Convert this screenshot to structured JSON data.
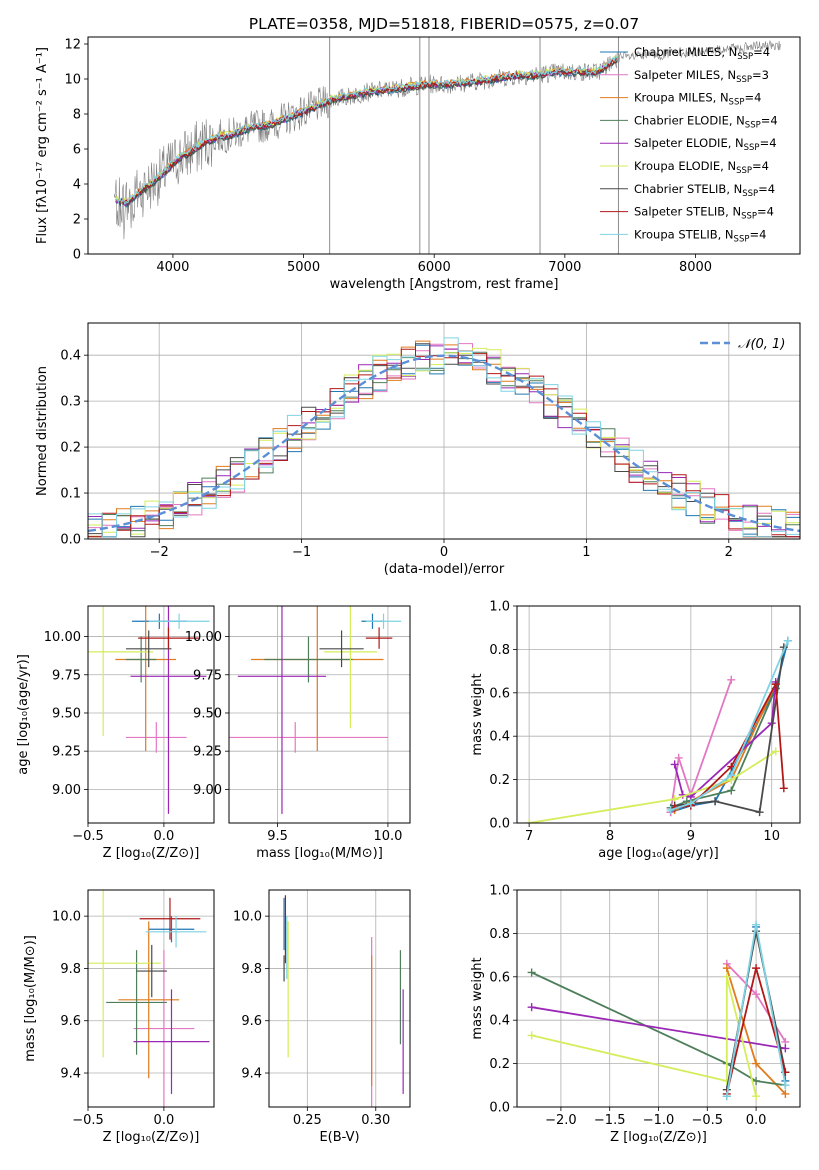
{
  "title": "PLATE=0358, MJD=51818, FIBERID=0575, z=0.07",
  "models": [
    {
      "name": "Chabrier MILES",
      "nssp": "4",
      "color": "#1f77b4"
    },
    {
      "name": "Salpeter MILES",
      "nssp": "3",
      "color": "#e377c2"
    },
    {
      "name": "Kroupa MILES",
      "nssp": "4",
      "color": "#e07b1e"
    },
    {
      "name": "Chabrier ELODIE",
      "nssp": "4",
      "color": "#4f7f5a"
    },
    {
      "name": "Salpeter ELODIE",
      "nssp": "4",
      "color": "#9b27b6"
    },
    {
      "name": "Kroupa ELODIE",
      "nssp": "4",
      "color": "#d4ed5a"
    },
    {
      "name": "Chabrier STELIB",
      "nssp": "4",
      "color": "#4a4a4a"
    },
    {
      "name": "Salpeter STELIB",
      "nssp": "4",
      "color": "#b21818"
    },
    {
      "name": "Kroupa STELIB",
      "nssp": "4",
      "color": "#7fd3e3"
    }
  ],
  "colors": {
    "data": "#808080",
    "normal": "#5b8fd6",
    "grid": "#b0b0b0"
  },
  "legend_nssp_prefix": "N",
  "legend_nssp_sub": "SSP",
  "chart_data": [
    {
      "id": "spectrum",
      "type": "line",
      "xlabel": "wavelength [Angstrom, rest frame]",
      "ylabel": "Flux [fλ10⁻¹⁷ erg cm⁻² s⁻¹ A⁻¹]",
      "xlim": [
        3350,
        8800
      ],
      "ylim": [
        0,
        12.4
      ],
      "xticks": [
        4000,
        5000,
        6000,
        7000,
        8000
      ],
      "yticks": [
        0,
        2,
        4,
        6,
        8,
        10,
        12
      ],
      "grid": false,
      "legend": "right",
      "continuum": {
        "x": [
          3550,
          3650,
          3750,
          3850,
          3950,
          4050,
          4150,
          4250,
          4350,
          4450,
          4550,
          4650,
          4750,
          4850,
          4950,
          5050,
          5150,
          5250,
          5350,
          5450,
          5550,
          5650,
          5750,
          5850,
          5950,
          6050,
          6150,
          6250,
          6350,
          6450,
          6550,
          6650,
          6750,
          6850,
          6950,
          7050,
          7150,
          7250,
          7350,
          7400
        ],
        "y": [
          3.1,
          2.9,
          3.6,
          4.1,
          4.8,
          5.5,
          5.9,
          6.4,
          6.7,
          6.8,
          7.1,
          7.3,
          7.4,
          7.7,
          8.0,
          8.3,
          8.6,
          8.9,
          9.0,
          9.2,
          9.3,
          9.4,
          9.5,
          9.6,
          9.7,
          9.7,
          9.7,
          9.8,
          9.9,
          10.0,
          10.1,
          10.2,
          10.2,
          10.3,
          10.4,
          10.4,
          10.4,
          10.4,
          10.9,
          11.2
        ]
      },
      "data_extent": [
        3550,
        8650
      ],
      "spikes": [
        5200,
        5890,
        5960,
        6810,
        7410
      ]
    },
    {
      "id": "residuals",
      "type": "histogram",
      "xlabel": "(data-model)/error",
      "ylabel": "Normed distribution",
      "xlim": [
        -2.5,
        2.5
      ],
      "ylim": [
        0,
        0.47
      ],
      "xticks": [
        -2,
        -1,
        0,
        1,
        2
      ],
      "yticks": [
        0.0,
        0.1,
        0.2,
        0.3,
        0.4
      ],
      "grid": true,
      "legend": "top-right",
      "normal_label": "𝒩(0, 1)",
      "bin_width": 0.1
    },
    {
      "id": "age_vs_Z",
      "type": "errorbar",
      "xlabel": "Z [log₁₀(Z/Z⊙)]",
      "ylabel": "age  [log₁₀(age/yr)]",
      "xlim": [
        -0.5,
        0.33
      ],
      "ylim": [
        8.78,
        10.2
      ],
      "xticks": [
        -0.5,
        0.0
      ],
      "yticks": [
        9.0,
        9.25,
        9.5,
        9.75,
        10.0
      ],
      "grid": true,
      "points": [
        {
          "x": -0.03,
          "xerr": 0.18,
          "y": 10.1,
          "yerr": 0.05
        },
        {
          "x": -0.05,
          "xerr": 0.2,
          "y": 9.34,
          "yerr": 0.1
        },
        {
          "x": -0.12,
          "xerr": 0.2,
          "y": 9.85,
          "yerr": 0.6
        },
        {
          "x": -0.15,
          "xerr": 0.1,
          "y": 9.85,
          "yerr": 0.15
        },
        {
          "x": 0.03,
          "xerr": 0.25,
          "y": 9.74,
          "yerr": 0.9
        },
        {
          "x": -0.4,
          "xerr": 0.33,
          "y": 9.9,
          "yerr": 0.55
        },
        {
          "x": -0.1,
          "xerr": 0.15,
          "y": 9.92,
          "yerr": 0.12
        },
        {
          "x": 0.03,
          "xerr": 0.2,
          "y": 9.99,
          "yerr": 0.07
        },
        {
          "x": 0.1,
          "xerr": 0.2,
          "y": 10.1,
          "yerr": 0.05
        }
      ]
    },
    {
      "id": "age_vs_mass",
      "type": "errorbar",
      "xlabel": "mass [log₁₀(M/M⊙)]",
      "ylabel": "",
      "xlim": [
        9.28,
        10.1
      ],
      "ylim": [
        8.78,
        10.2
      ],
      "xticks": [
        9.5,
        10.0
      ],
      "yticks": [
        9.0,
        9.25,
        9.5,
        9.75,
        10.0
      ],
      "grid": true,
      "points": [
        {
          "x": 9.93,
          "xerr": 0.05,
          "y": 10.1,
          "yerr": 0.05
        },
        {
          "x": 9.58,
          "xerr": 0.42,
          "y": 9.34,
          "yerr": 0.1
        },
        {
          "x": 9.68,
          "xerr": 0.3,
          "y": 9.85,
          "yerr": 0.6
        },
        {
          "x": 9.64,
          "xerr": 0.2,
          "y": 9.85,
          "yerr": 0.15
        },
        {
          "x": 9.52,
          "xerr": 0.2,
          "y": 9.74,
          "yerr": 0.9
        },
        {
          "x": 9.83,
          "xerr": 0.12,
          "y": 9.9,
          "yerr": 0.5
        },
        {
          "x": 9.79,
          "xerr": 0.1,
          "y": 9.92,
          "yerr": 0.12
        },
        {
          "x": 9.96,
          "xerr": 0.06,
          "y": 9.99,
          "yerr": 0.07
        },
        {
          "x": 9.98,
          "xerr": 0.08,
          "y": 10.1,
          "yerr": 0.05
        }
      ]
    },
    {
      "id": "mass_weight_vs_age",
      "type": "line",
      "xlabel": "age  [log₁₀(age/yr)]",
      "ylabel": "mass weight",
      "xlim": [
        6.85,
        10.35
      ],
      "ylim": [
        0,
        1
      ],
      "xticks": [
        7,
        8,
        9,
        10
      ],
      "yticks": [
        0.0,
        0.2,
        0.4,
        0.6,
        0.8,
        1.0
      ],
      "grid": true,
      "series": [
        {
          "x": [
            8.75,
            9.0,
            9.3,
            10.05,
            10.2
          ],
          "y": [
            0.05,
            0.08,
            0.1,
            0.62,
            0.84
          ]
        },
        {
          "x": [
            8.75,
            8.85,
            9.0,
            9.5
          ],
          "y": [
            0.05,
            0.3,
            0.13,
            0.66
          ]
        },
        {
          "x": [
            8.8,
            9.0,
            9.5,
            10.05
          ],
          "y": [
            0.06,
            0.1,
            0.2,
            0.64
          ]
        },
        {
          "x": [
            8.75,
            8.95,
            9.5,
            10.05
          ],
          "y": [
            0.07,
            0.1,
            0.15,
            0.62
          ]
        },
        {
          "x": [
            8.8,
            8.9,
            9.0,
            10.0,
            10.05
          ],
          "y": [
            0.27,
            0.13,
            0.12,
            0.46,
            0.65
          ]
        },
        {
          "x": [
            7.0,
            8.8,
            9.5,
            10.05
          ],
          "y": [
            0.0,
            0.11,
            0.2,
            0.33
          ]
        },
        {
          "x": [
            8.8,
            9.3,
            9.85,
            10.15
          ],
          "y": [
            0.08,
            0.1,
            0.05,
            0.81
          ]
        },
        {
          "x": [
            8.8,
            9.0,
            9.5,
            10.05,
            10.15
          ],
          "y": [
            0.07,
            0.08,
            0.26,
            0.64,
            0.16
          ]
        },
        {
          "x": [
            8.75,
            9.0,
            9.5,
            10.2
          ],
          "y": [
            0.06,
            0.09,
            0.22,
            0.84
          ]
        }
      ]
    },
    {
      "id": "mass_vs_Z",
      "type": "errorbar",
      "xlabel": "Z [log₁₀(Z/Z⊙)]",
      "ylabel": "mass [log₁₀(M/M⊙)]",
      "xlim": [
        -0.5,
        0.33
      ],
      "ylim": [
        9.27,
        10.1
      ],
      "xticks": [
        -0.5,
        0.0
      ],
      "yticks": [
        9.4,
        9.6,
        9.8,
        10.0
      ],
      "grid": true,
      "points": [
        {
          "x": 0.05,
          "xerr": 0.15,
          "y": 9.95,
          "yerr": 0.05
        },
        {
          "x": 0.0,
          "xerr": 0.2,
          "y": 9.57,
          "yerr": 0.3
        },
        {
          "x": -0.1,
          "xerr": 0.2,
          "y": 9.68,
          "yerr": 0.3
        },
        {
          "x": -0.18,
          "xerr": 0.2,
          "y": 9.67,
          "yerr": 0.2
        },
        {
          "x": 0.05,
          "xerr": 0.25,
          "y": 9.52,
          "yerr": 0.2
        },
        {
          "x": -0.4,
          "xerr": 0.38,
          "y": 9.82,
          "yerr": 0.36
        },
        {
          "x": -0.08,
          "xerr": 0.1,
          "y": 9.79,
          "yerr": 0.1
        },
        {
          "x": 0.04,
          "xerr": 0.2,
          "y": 9.99,
          "yerr": 0.08
        },
        {
          "x": 0.08,
          "xerr": 0.2,
          "y": 9.94,
          "yerr": 0.06
        }
      ]
    },
    {
      "id": "mass_vs_EBV",
      "type": "errorbar",
      "xlabel": "E(B-V)",
      "ylabel": "",
      "xlim": [
        0.222,
        0.325
      ],
      "ylim": [
        9.27,
        10.1
      ],
      "xticks": [
        0.25,
        0.3
      ],
      "yticks": [
        9.4,
        9.6,
        9.8,
        10.0
      ],
      "grid": true,
      "points": [
        {
          "x": 0.233,
          "xerr": 0,
          "y": 9.97,
          "yerr": 0.1
        },
        {
          "x": 0.297,
          "xerr": 0,
          "y": 9.57,
          "yerr": 0.35
        },
        {
          "x": 0.297,
          "xerr": 0,
          "y": 9.6,
          "yerr": 0.25
        },
        {
          "x": 0.318,
          "xerr": 0,
          "y": 9.69,
          "yerr": 0.18
        },
        {
          "x": 0.32,
          "xerr": 0,
          "y": 9.52,
          "yerr": 0.2
        },
        {
          "x": 0.236,
          "xerr": 0,
          "y": 9.72,
          "yerr": 0.26
        },
        {
          "x": 0.233,
          "xerr": 0,
          "y": 9.8,
          "yerr": 0.05
        },
        {
          "x": 0.234,
          "xerr": 0,
          "y": 9.95,
          "yerr": 0.13
        },
        {
          "x": 0.235,
          "xerr": 0,
          "y": 9.88,
          "yerr": 0.12
        }
      ]
    },
    {
      "id": "mass_weight_vs_Z",
      "type": "line",
      "xlabel": "Z [log₁₀(Z/Z⊙)]",
      "ylabel": "mass weight",
      "xlim": [
        -2.45,
        0.45
      ],
      "ylim": [
        0,
        1
      ],
      "xticks": [
        -2.0,
        -1.5,
        -1.0,
        -0.5,
        0.0
      ],
      "yticks": [
        0.0,
        0.2,
        0.4,
        0.6,
        0.8,
        1.0
      ],
      "grid": true,
      "series": [
        {
          "x": [
            -0.3,
            0.0,
            0.3
          ],
          "y": [
            0.05,
            0.83,
            0.12
          ]
        },
        {
          "x": [
            -0.3,
            0.0,
            0.3
          ],
          "y": [
            0.66,
            0.52,
            0.3
          ]
        },
        {
          "x": [
            -0.3,
            0.0,
            0.3
          ],
          "y": [
            0.64,
            0.2,
            0.06
          ]
        },
        {
          "x": [
            -2.3,
            -0.3,
            0.0,
            0.3
          ],
          "y": [
            0.62,
            0.2,
            0.12,
            0.1
          ]
        },
        {
          "x": [
            -2.3,
            0.3
          ],
          "y": [
            0.46,
            0.27
          ]
        },
        {
          "x": [
            -2.3,
            -0.3,
            -0.3,
            0.0
          ],
          "y": [
            0.33,
            0.12,
            0.6,
            0.05
          ]
        },
        {
          "x": [
            -0.3,
            0.0,
            0.3
          ],
          "y": [
            0.08,
            0.81,
            0.16
          ]
        },
        {
          "x": [
            -0.3,
            0.0,
            0.3
          ],
          "y": [
            0.06,
            0.64,
            0.16
          ]
        },
        {
          "x": [
            -0.3,
            0.0,
            0.3
          ],
          "y": [
            0.05,
            0.84,
            0.1
          ]
        }
      ]
    }
  ]
}
